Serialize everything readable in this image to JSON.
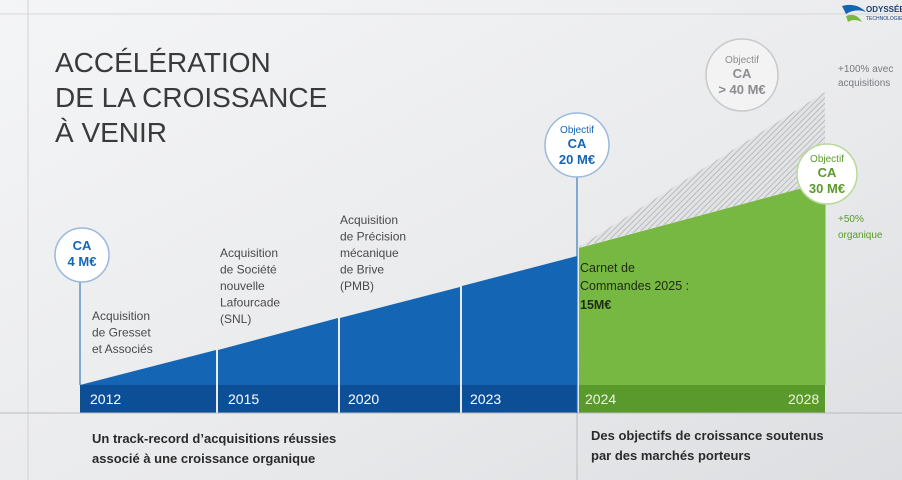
{
  "logo": {
    "name": "ODYSSÉE",
    "subtitle": "TECHNOLOGIES"
  },
  "title": [
    "ACCÉLÉRATION",
    "DE LA CROISSANCE",
    "À VENIR"
  ],
  "years": [
    "2012",
    "2015",
    "2020",
    "2023",
    "2024",
    "2028"
  ],
  "bubbles": [
    [
      "CA",
      "4 M€"
    ],
    [
      "Objectif",
      "CA",
      "20 M€"
    ],
    [
      "Objectif",
      "CA",
      "> 40 M€"
    ],
    [
      "Objectif",
      "CA",
      "30 M€"
    ]
  ],
  "acquisitions": [
    [
      "Acquisition",
      "de Gresset",
      "et Associés"
    ],
    [
      "Acquisition",
      "de Société",
      "nouvelle",
      "Lafourcade",
      "(SNL)"
    ],
    [
      "Acquisition",
      "de Précision",
      "mécanique",
      "de Brive",
      "(PMB)"
    ]
  ],
  "backlog": [
    "Carnet de",
    "Commandes 2025 :",
    "15M€"
  ],
  "growth_notes": [
    [
      "+100% avec",
      "acquisitions"
    ],
    [
      "+50%",
      "organique"
    ]
  ],
  "footer": [
    [
      "Un track-record d’acquisitions réussies",
      "associé à une croissance organique"
    ],
    [
      "Des objectifs de croissance soutenus",
      "par des marchés porteurs"
    ]
  ]
}
